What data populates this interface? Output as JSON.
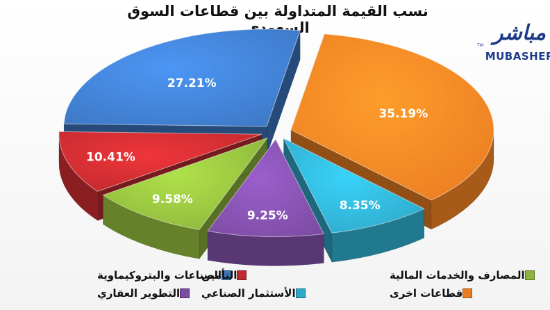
{
  "title": "نسب القيمة المتداولة بين قطاعات السوق السعودي",
  "logo": {
    "arabic": "مباشر",
    "english": "MUBASHER",
    "tm": "TM"
  },
  "chart_data": {
    "type": "pie",
    "title": "نسب القيمة المتداولة بين قطاعات السوق السعودي",
    "labels": [
      "قطاعات اخرى",
      "الأستثمار الصناعي",
      "التطوير العقاري",
      "المصارف والخدمات المالية",
      "التأمين",
      "الصناعات والبتروكيماوية"
    ],
    "values": [
      35.19,
      8.35,
      9.25,
      9.58,
      10.41,
      27.21
    ],
    "value_labels": [
      "35.19%",
      "8.35%",
      "9.25%",
      "9.58%",
      "10.41%",
      "27.21%"
    ],
    "colors": [
      "#ea7d22",
      "#2ea8c8",
      "#7c4ca3",
      "#8cb43b",
      "#bf2a2e",
      "#3d78c4"
    ],
    "legend_position": "bottom",
    "three_d": true,
    "exploded": true
  },
  "legend": [
    {
      "label": "الصناعات والبتروكيماوية",
      "color": "#3d78c4"
    },
    {
      "label": "التأمين",
      "color": "#bf2a2e"
    },
    {
      "label": "المصارف والخدمات المالية",
      "color": "#8cb43b"
    },
    {
      "label": "التطوير العقاري",
      "color": "#7c4ca3"
    },
    {
      "label": "الأستثمار الصناعي",
      "color": "#2ea8c8"
    },
    {
      "label": "قطاعات اخرى",
      "color": "#ea7d22"
    }
  ]
}
